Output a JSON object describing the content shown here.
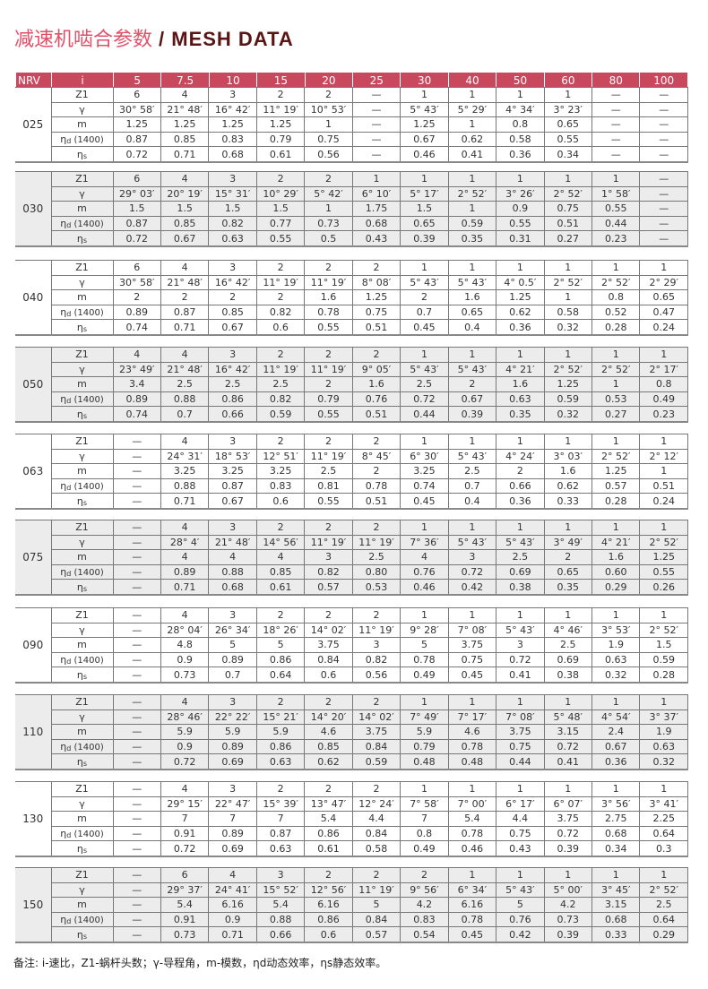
{
  "title": {
    "cn": "减速机啮合参数",
    "en": "/ MESH DATA"
  },
  "header": {
    "nrv": "NRV",
    "i": "i",
    "ratios": [
      "5",
      "7.5",
      "10",
      "15",
      "20",
      "25",
      "30",
      "40",
      "50",
      "60",
      "80",
      "100"
    ]
  },
  "colors": {
    "header_bg": "#c9485e",
    "title_cn": "#e25068",
    "title_en": "#5a1414",
    "alt_row": "#ececec"
  },
  "row_labels": [
    {
      "main": "Z1",
      "sub": "",
      "suffix": ""
    },
    {
      "main": "γ",
      "sub": "",
      "suffix": ""
    },
    {
      "main": "m",
      "sub": "",
      "suffix": ""
    },
    {
      "main": "η",
      "sub": "d",
      "suffix": " (1400)"
    },
    {
      "main": "η",
      "sub": "s",
      "suffix": ""
    }
  ],
  "blocks": [
    {
      "nrv": "025",
      "rows": [
        [
          "6",
          "4",
          "3",
          "2",
          "2",
          "—",
          "1",
          "1",
          "1",
          "1",
          "—",
          "—"
        ],
        [
          "30° 58′",
          "21° 48′",
          "16° 42′",
          "11° 19′",
          "10° 53′",
          "—",
          "5° 43′",
          "5° 29′",
          "4° 34′",
          "3° 23′",
          "—",
          "—"
        ],
        [
          "1.25",
          "1.25",
          "1.25",
          "1.25",
          "1",
          "—",
          "1.25",
          "1",
          "0.8",
          "0.65",
          "—",
          "—"
        ],
        [
          "0.87",
          "0.85",
          "0.83",
          "0.79",
          "0.75",
          "—",
          "0.67",
          "0.62",
          "0.58",
          "0.55",
          "—",
          "—"
        ],
        [
          "0.72",
          "0.71",
          "0.68",
          "0.61",
          "0.56",
          "—",
          "0.46",
          "0.41",
          "0.36",
          "0.34",
          "—",
          "—"
        ]
      ]
    },
    {
      "nrv": "030",
      "rows": [
        [
          "6",
          "4",
          "3",
          "2",
          "2",
          "1",
          "1",
          "1",
          "1",
          "1",
          "1",
          "—"
        ],
        [
          "29° 03′",
          "20° 19′",
          "15° 31′",
          "10° 29′",
          "5° 42′",
          "6° 10′",
          "5° 17′",
          "2° 52′",
          "3° 26′",
          "2° 52′",
          "1° 58′",
          "—"
        ],
        [
          "1.5",
          "1.5",
          "1.5",
          "1.5",
          "1",
          "1.75",
          "1.5",
          "1",
          "0.9",
          "0.75",
          "0.55",
          "—"
        ],
        [
          "0.87",
          "0.85",
          "0.82",
          "0.77",
          "0.73",
          "0.68",
          "0.65",
          "0.59",
          "0.55",
          "0.51",
          "0.44",
          "—"
        ],
        [
          "0.72",
          "0.67",
          "0.63",
          "0.55",
          "0.5",
          "0.43",
          "0.39",
          "0.35",
          "0.31",
          "0.27",
          "0.23",
          "—"
        ]
      ]
    },
    {
      "nrv": "040",
      "rows": [
        [
          "6",
          "4",
          "3",
          "2",
          "2",
          "2",
          "1",
          "1",
          "1",
          "1",
          "1",
          "1"
        ],
        [
          "30° 58′",
          "21° 48′",
          "16° 42′",
          "11° 19′",
          "11° 19′",
          "8° 08′",
          "5° 43′",
          "5° 43′",
          "4° 0.5′",
          "2° 52′",
          "2° 52′",
          "2° 29′"
        ],
        [
          "2",
          "2",
          "2",
          "2",
          "1.6",
          "1.25",
          "2",
          "1.6",
          "1.25",
          "1",
          "0.8",
          "0.65"
        ],
        [
          "0.89",
          "0.87",
          "0.85",
          "0.82",
          "0.78",
          "0.75",
          "0.7",
          "0.65",
          "0.62",
          "0.58",
          "0.52",
          "0.47"
        ],
        [
          "0.74",
          "0.71",
          "0.67",
          "0.6",
          "0.55",
          "0.51",
          "0.45",
          "0.4",
          "0.36",
          "0.32",
          "0.28",
          "0.24"
        ]
      ]
    },
    {
      "nrv": "050",
      "rows": [
        [
          "4",
          "4",
          "3",
          "2",
          "2",
          "2",
          "1",
          "1",
          "1",
          "1",
          "1",
          "1"
        ],
        [
          "23° 49′",
          "21° 48′",
          "16° 42′",
          "11° 19′",
          "11° 19′",
          "9° 05′",
          "5° 43′",
          "5° 43′",
          "4° 21′",
          "2° 52′",
          "2° 52′",
          "2° 17′"
        ],
        [
          "3.4",
          "2.5",
          "2.5",
          "2.5",
          "2",
          "1.6",
          "2.5",
          "2",
          "1.6",
          "1.25",
          "1",
          "0.8"
        ],
        [
          "0.89",
          "0.88",
          "0.86",
          "0.82",
          "0.79",
          "0.76",
          "0.72",
          "0.67",
          "0.63",
          "0.59",
          "0.53",
          "0.49"
        ],
        [
          "0.74",
          "0.7",
          "0.66",
          "0.59",
          "0.55",
          "0.51",
          "0.44",
          "0.39",
          "0.35",
          "0.32",
          "0.27",
          "0.23"
        ]
      ]
    },
    {
      "nrv": "063",
      "rows": [
        [
          "—",
          "4",
          "3",
          "2",
          "2",
          "2",
          "1",
          "1",
          "1",
          "1",
          "1",
          "1"
        ],
        [
          "—",
          "24° 31′",
          "18° 53′",
          "12° 51′",
          "11° 19′",
          "8° 45′",
          "6° 30′",
          "5° 43′",
          "4° 24′",
          "3° 03′",
          "2° 52′",
          "2° 12′"
        ],
        [
          "—",
          "3.25",
          "3.25",
          "3.25",
          "2.5",
          "2",
          "3.25",
          "2.5",
          "2",
          "1.6",
          "1.25",
          "1"
        ],
        [
          "—",
          "0.88",
          "0.87",
          "0.83",
          "0.81",
          "0.78",
          "0.74",
          "0.7",
          "0.66",
          "0.62",
          "0.57",
          "0.51"
        ],
        [
          "—",
          "0.71",
          "0.67",
          "0.6",
          "0.55",
          "0.51",
          "0.45",
          "0.4",
          "0.36",
          "0.33",
          "0.28",
          "0.24"
        ]
      ]
    },
    {
      "nrv": "075",
      "rows": [
        [
          "—",
          "4",
          "3",
          "2",
          "2",
          "2",
          "1",
          "1",
          "1",
          "1",
          "1",
          "1"
        ],
        [
          "—",
          "28° 4′",
          "21° 48′",
          "14° 56′",
          "11° 19′",
          "11° 19′",
          "7° 36′",
          "5° 43′",
          "5° 43′",
          "3° 49′",
          "4° 21′",
          "2° 52′"
        ],
        [
          "—",
          "4",
          "4",
          "4",
          "3",
          "2.5",
          "4",
          "3",
          "2.5",
          "2",
          "1.6",
          "1.25"
        ],
        [
          "—",
          "0.89",
          "0.88",
          "0.85",
          "0.82",
          "0.80",
          "0.76",
          "0.72",
          "0.69",
          "0.65",
          "0.60",
          "0.55"
        ],
        [
          "—",
          "0.71",
          "0.68",
          "0.61",
          "0.57",
          "0.53",
          "0.46",
          "0.42",
          "0.38",
          "0.35",
          "0.29",
          "0.26"
        ]
      ]
    },
    {
      "nrv": "090",
      "rows": [
        [
          "—",
          "4",
          "3",
          "2",
          "2",
          "2",
          "1",
          "1",
          "1",
          "1",
          "1",
          "1"
        ],
        [
          "—",
          "28° 04′",
          "26° 34′",
          "18° 26′",
          "14° 02′",
          "11° 19′",
          "9° 28′",
          "7° 08′",
          "5° 43′",
          "4° 46′",
          "3° 53′",
          "2° 52′"
        ],
        [
          "—",
          "4.8",
          "5",
          "5",
          "3.75",
          "3",
          "5",
          "3.75",
          "3",
          "2.5",
          "1.9",
          "1.5"
        ],
        [
          "—",
          "0.9",
          "0.89",
          "0.86",
          "0.84",
          "0.82",
          "0.78",
          "0.75",
          "0.72",
          "0.69",
          "0.63",
          "0.59"
        ],
        [
          "—",
          "0.73",
          "0.7",
          "0.64",
          "0.6",
          "0.56",
          "0.49",
          "0.45",
          "0.41",
          "0.38",
          "0.32",
          "0.28"
        ]
      ]
    },
    {
      "nrv": "110",
      "rows": [
        [
          "—",
          "4",
          "3",
          "2",
          "2",
          "2",
          "1",
          "1",
          "1",
          "1",
          "1",
          "1"
        ],
        [
          "—",
          "28° 46′",
          "22° 22′",
          "15° 21′",
          "14° 20′",
          "14° 02′",
          "7° 49′",
          "7° 17′",
          "7° 08′",
          "5° 48′",
          "4° 54′",
          "3° 37′"
        ],
        [
          "—",
          "5.9",
          "5.9",
          "5.9",
          "4.6",
          "3.75",
          "5.9",
          "4.6",
          "3.75",
          "3.15",
          "2.4",
          "1.9"
        ],
        [
          "—",
          "0.9",
          "0.89",
          "0.86",
          "0.85",
          "0.84",
          "0.79",
          "0.78",
          "0.75",
          "0.72",
          "0.67",
          "0.63"
        ],
        [
          "—",
          "0.72",
          "0.69",
          "0.63",
          "0.62",
          "0.59",
          "0.48",
          "0.48",
          "0.44",
          "0.41",
          "0.36",
          "0.32"
        ]
      ]
    },
    {
      "nrv": "130",
      "rows": [
        [
          "—",
          "4",
          "3",
          "2",
          "2",
          "2",
          "1",
          "1",
          "1",
          "1",
          "1",
          "1"
        ],
        [
          "—",
          "29° 15′",
          "22° 47′",
          "15° 39′",
          "13° 47′",
          "12° 24′",
          "7° 58′",
          "7° 00′",
          "6° 17′",
          "6° 07′",
          "3° 56′",
          "3° 41′"
        ],
        [
          "—",
          "7",
          "7",
          "7",
          "5.4",
          "4.4",
          "7",
          "5.4",
          "4.4",
          "3.75",
          "2.75",
          "2.25"
        ],
        [
          "—",
          "0.91",
          "0.89",
          "0.87",
          "0.86",
          "0.84",
          "0.8",
          "0.78",
          "0.75",
          "0.72",
          "0.68",
          "0.64"
        ],
        [
          "—",
          "0.72",
          "0.69",
          "0.63",
          "0.61",
          "0.58",
          "0.49",
          "0.46",
          "0.43",
          "0.39",
          "0.34",
          "0.3"
        ]
      ]
    },
    {
      "nrv": "150",
      "rows": [
        [
          "—",
          "6",
          "4",
          "3",
          "2",
          "2",
          "2",
          "1",
          "1",
          "1",
          "1",
          "1"
        ],
        [
          "—",
          "29° 37′",
          "24° 41′",
          "15° 52′",
          "12° 56′",
          "11° 19′",
          "9° 56′",
          "6° 34′",
          "5° 43′",
          "5° 00′",
          "3° 45′",
          "2° 52′"
        ],
        [
          "—",
          "5.4",
          "6.16",
          "5.4",
          "6.16",
          "5",
          "4.2",
          "6.16",
          "5",
          "4.2",
          "3.15",
          "2.5"
        ],
        [
          "—",
          "0.91",
          "0.9",
          "0.88",
          "0.86",
          "0.84",
          "0.83",
          "0.78",
          "0.76",
          "0.73",
          "0.68",
          "0.64"
        ],
        [
          "—",
          "0.73",
          "0.71",
          "0.66",
          "0.6",
          "0.57",
          "0.54",
          "0.45",
          "0.42",
          "0.39",
          "0.33",
          "0.29"
        ]
      ]
    }
  ],
  "note": "备注: i-速比，Z1-蜗杆头数；γ-导程角，m-模数，ηd动态效率，ηs静态效率。"
}
